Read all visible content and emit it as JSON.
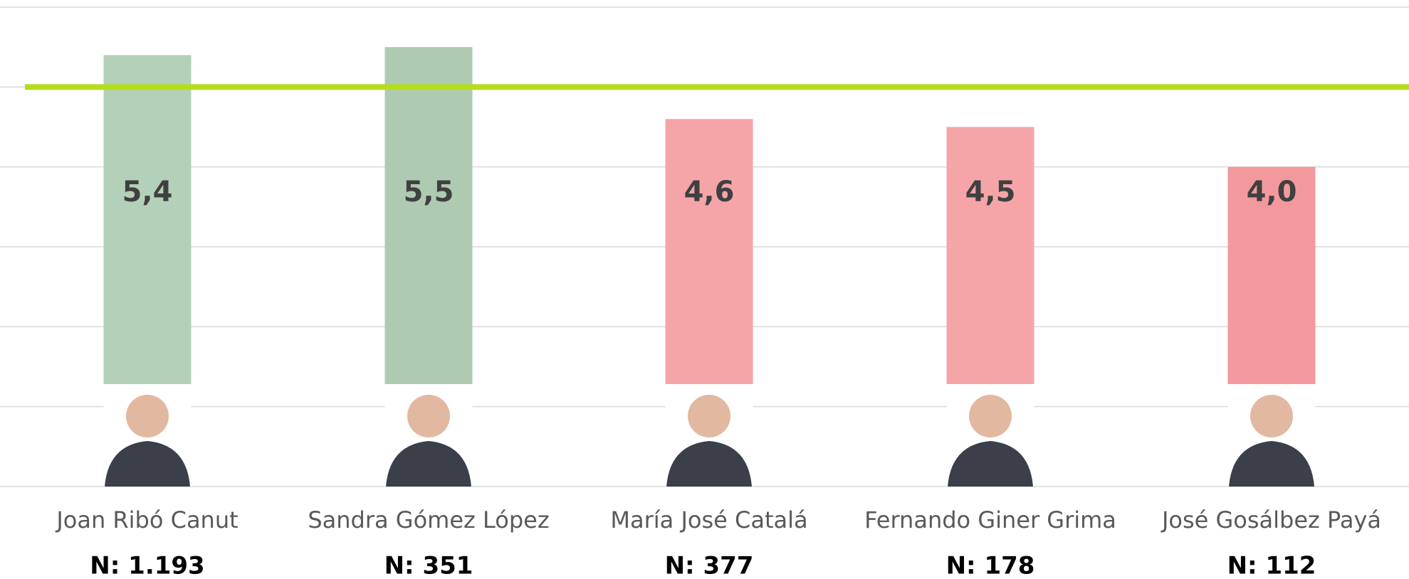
{
  "chart_data": {
    "type": "bar",
    "categories": [
      "Joan Ribó Canut",
      "Sandra Gómez López",
      "María José Catalá",
      "Fernando Giner Grima",
      "José Gosálbez Payá"
    ],
    "values": [
      5.4,
      5.5,
      4.6,
      4.5,
      4.0
    ],
    "value_labels": [
      "5,4",
      "5,5",
      "4,6",
      "4,5",
      "4,0"
    ],
    "sample_labels": [
      "N: 1.193",
      "N: 351",
      "N: 377",
      "N: 178",
      "N: 112"
    ],
    "colors": [
      "#b3d1b8",
      "#aecbb2",
      "#f5a5a8",
      "#f5a5a8",
      "#f3999d"
    ],
    "reference_line": {
      "value": 5,
      "color": "#b5dd1e"
    },
    "ylim": [
      0,
      6
    ],
    "yticks": [
      0,
      1,
      2,
      3,
      4,
      5,
      6
    ],
    "grid": true
  }
}
